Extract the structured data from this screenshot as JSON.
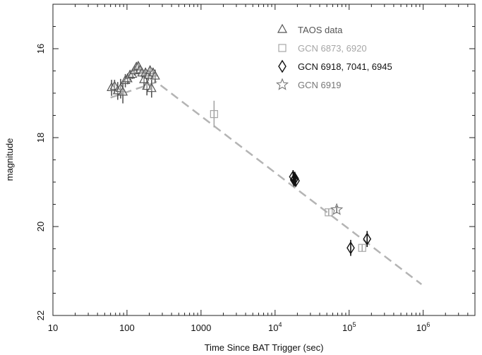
{
  "chart_data": {
    "type": "scatter",
    "xlabel": "Time Since BAT Trigger (sec)",
    "ylabel": "magnitude",
    "x_scale": "log",
    "xlim": [
      10,
      5000000
    ],
    "ylim": [
      22,
      15
    ],
    "y_inverted": true,
    "x_ticks": [
      {
        "value": 10,
        "label": "10"
      },
      {
        "value": 100,
        "label": "100"
      },
      {
        "value": 1000,
        "label": "1000"
      },
      {
        "value": 10000,
        "label": "10",
        "sup": "4"
      },
      {
        "value": 100000,
        "label": "10",
        "sup": "5"
      },
      {
        "value": 1000000,
        "label": "10",
        "sup": "6"
      }
    ],
    "y_ticks": [
      {
        "value": 16,
        "label": "16"
      },
      {
        "value": 18,
        "label": "18"
      },
      {
        "value": 20,
        "label": "20"
      },
      {
        "value": 22,
        "label": "22"
      }
    ],
    "legend_position": "top-right",
    "grid": false,
    "fit_line": {
      "style": "dashed",
      "color": "#b4b4b4",
      "points": [
        [
          60,
          17.1
        ],
        [
          250,
          16.75
        ],
        [
          950000,
          21.3
        ]
      ]
    },
    "series": [
      {
        "name": "TAOS data",
        "marker": "triangle",
        "color": "#555555",
        "points": [
          {
            "x": 62,
            "y": 16.88,
            "err": 0.18
          },
          {
            "x": 68,
            "y": 16.85,
            "err": 0.15
          },
          {
            "x": 75,
            "y": 16.95,
            "err": 0.2
          },
          {
            "x": 82,
            "y": 16.9,
            "err": 0.22
          },
          {
            "x": 88,
            "y": 16.98,
            "err": 0.25
          },
          {
            "x": 95,
            "y": 16.72,
            "err": 0.15
          },
          {
            "x": 102,
            "y": 16.68,
            "err": 0.12
          },
          {
            "x": 110,
            "y": 16.6,
            "err": 0.12
          },
          {
            "x": 118,
            "y": 16.58,
            "err": 0.1
          },
          {
            "x": 126,
            "y": 16.5,
            "err": 0.1
          },
          {
            "x": 134,
            "y": 16.42,
            "err": 0.08
          },
          {
            "x": 142,
            "y": 16.4,
            "err": 0.08
          },
          {
            "x": 150,
            "y": 16.48,
            "err": 0.1
          },
          {
            "x": 160,
            "y": 16.55,
            "err": 0.1
          },
          {
            "x": 170,
            "y": 16.7,
            "err": 0.2
          },
          {
            "x": 178,
            "y": 16.55,
            "err": 0.12
          },
          {
            "x": 186,
            "y": 16.85,
            "err": 0.2
          },
          {
            "x": 195,
            "y": 16.6,
            "err": 0.12
          },
          {
            "x": 205,
            "y": 16.5,
            "err": 0.12
          },
          {
            "x": 215,
            "y": 16.9,
            "err": 0.2
          },
          {
            "x": 225,
            "y": 16.55,
            "err": 0.12
          },
          {
            "x": 240,
            "y": 16.62,
            "err": 0.15
          }
        ]
      },
      {
        "name": "GCN 6873, 6920",
        "marker": "square",
        "color": "#a6a6a6",
        "points": [
          {
            "x": 1500,
            "y": 17.47,
            "err": 0.3
          },
          {
            "x": 53000,
            "y": 19.68,
            "err": 0.08
          },
          {
            "x": 150000,
            "y": 20.48,
            "err": 0.08
          }
        ]
      },
      {
        "name": "GCN 6918, 7041, 6945",
        "marker": "diamond",
        "color": "#111111",
        "points": [
          {
            "x": 17500,
            "y": 18.88,
            "err": 0.15
          },
          {
            "x": 18000,
            "y": 18.95,
            "err": 0.15
          },
          {
            "x": 18500,
            "y": 18.92,
            "err": 0.15
          },
          {
            "x": 19000,
            "y": 18.97,
            "err": 0.12
          },
          {
            "x": 105000,
            "y": 20.48,
            "err": 0.18
          },
          {
            "x": 175000,
            "y": 20.28,
            "err": 0.18
          }
        ]
      },
      {
        "name": "GCN 6919",
        "marker": "star",
        "color": "#777777",
        "points": [
          {
            "x": 68000,
            "y": 19.62,
            "err": 0.08
          }
        ]
      }
    ]
  }
}
